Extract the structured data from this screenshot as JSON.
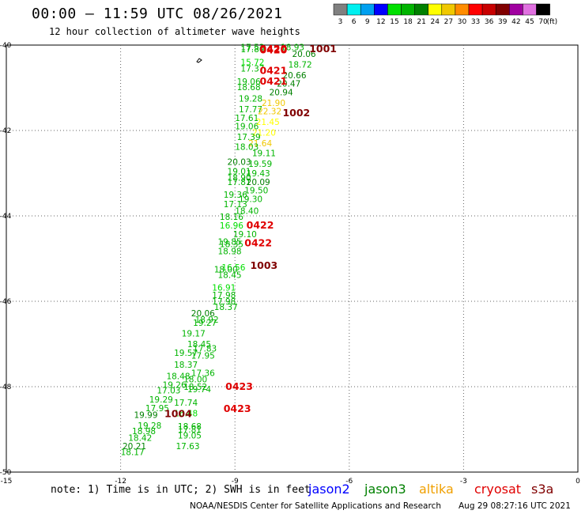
{
  "header": {
    "title": "00:00 — 11:59 UTC 08/26/2021",
    "subtitle": "12 hour collection of altimeter wave heights"
  },
  "legend": {
    "units": "(ft)",
    "bins": [
      {
        "label": "3",
        "color": "#808080"
      },
      {
        "label": "6",
        "color": "#00f0f0"
      },
      {
        "label": "9",
        "color": "#00a0f0"
      },
      {
        "label": "12",
        "color": "#0000ff"
      },
      {
        "label": "15",
        "color": "#00e000"
      },
      {
        "label": "18",
        "color": "#00b400"
      },
      {
        "label": "21",
        "color": "#008000"
      },
      {
        "label": "24",
        "color": "#ffff00"
      },
      {
        "label": "27",
        "color": "#f0c800"
      },
      {
        "label": "30",
        "color": "#ff8c00"
      },
      {
        "label": "33",
        "color": "#ff0000"
      },
      {
        "label": "36",
        "color": "#c80000"
      },
      {
        "label": "39",
        "color": "#800000"
      },
      {
        "label": "42",
        "color": "#a000a0"
      },
      {
        "label": "45",
        "color": "#e070e0"
      },
      {
        "label": "70",
        "color": "#000000"
      }
    ]
  },
  "map": {
    "lon_range": [
      -15,
      0
    ],
    "lat_range": [
      -50,
      -40
    ],
    "x_ticks": [
      "-15",
      "-12",
      "-9",
      "-6",
      "-3",
      "0"
    ],
    "y_ticks": [
      "-40",
      "-42",
      "-44",
      "-46",
      "-48",
      "-50"
    ],
    "grid": true
  },
  "chart_data": {
    "type": "scatter",
    "xlabel": "",
    "ylabel": "",
    "xlim": [
      -15,
      0
    ],
    "ylim": [
      -50,
      -40
    ],
    "points": [
      {
        "lon": -8.85,
        "lat": -40.05,
        "v": "17.53",
        "c": "#00b400"
      },
      {
        "lon": -8.85,
        "lat": -40.09,
        "v": "17.80",
        "c": "#00b400"
      },
      {
        "lon": -7.8,
        "lat": -40.05,
        "v": "18.93",
        "c": "#00b400"
      },
      {
        "lon": -7.5,
        "lat": -40.2,
        "v": "20.06",
        "c": "#008000"
      },
      {
        "lon": -8.85,
        "lat": -40.4,
        "v": "15.72",
        "c": "#00e000"
      },
      {
        "lon": -7.6,
        "lat": -40.45,
        "v": "18.72",
        "c": "#00b400"
      },
      {
        "lon": -8.85,
        "lat": -40.55,
        "v": "17.37",
        "c": "#00b400"
      },
      {
        "lon": -7.75,
        "lat": -40.7,
        "v": "20.66",
        "c": "#008000"
      },
      {
        "lon": -8.95,
        "lat": -40.85,
        "v": "19.06",
        "c": "#00b400"
      },
      {
        "lon": -7.9,
        "lat": -40.9,
        "v": "20.47",
        "c": "#008000"
      },
      {
        "lon": -8.95,
        "lat": -40.98,
        "v": "18.68",
        "c": "#00b400"
      },
      {
        "lon": -8.1,
        "lat": -41.1,
        "v": "20.94",
        "c": "#008000"
      },
      {
        "lon": -8.9,
        "lat": -41.25,
        "v": "19.28",
        "c": "#00b400"
      },
      {
        "lon": -8.3,
        "lat": -41.35,
        "v": "21.90",
        "c": "#f0c800"
      },
      {
        "lon": -8.9,
        "lat": -41.5,
        "v": "17.77",
        "c": "#00b400"
      },
      {
        "lon": -8.4,
        "lat": -41.55,
        "v": "22.32",
        "c": "#f0c800"
      },
      {
        "lon": -9.0,
        "lat": -41.7,
        "v": "17.61",
        "c": "#00b400"
      },
      {
        "lon": -8.45,
        "lat": -41.8,
        "v": "21.45",
        "c": "#ffff00"
      },
      {
        "lon": -9.0,
        "lat": -41.9,
        "v": "19.06",
        "c": "#00b400"
      },
      {
        "lon": -8.55,
        "lat": -42.05,
        "v": "21.20",
        "c": "#ffff00"
      },
      {
        "lon": -8.95,
        "lat": -42.15,
        "v": "17.39",
        "c": "#00b400"
      },
      {
        "lon": -8.65,
        "lat": -42.3,
        "v": "21.64",
        "c": "#f0c800"
      },
      {
        "lon": -9.0,
        "lat": -42.38,
        "v": "18.03",
        "c": "#00b400"
      },
      {
        "lon": -8.55,
        "lat": -42.53,
        "v": "19.11",
        "c": "#00b400"
      },
      {
        "lon": -9.2,
        "lat": -42.73,
        "v": "20.03",
        "c": "#008000"
      },
      {
        "lon": -8.65,
        "lat": -42.78,
        "v": "19.59",
        "c": "#00b400"
      },
      {
        "lon": -9.2,
        "lat": -42.95,
        "v": "19.01",
        "c": "#00b400"
      },
      {
        "lon": -8.7,
        "lat": -43.0,
        "v": "19.43",
        "c": "#00b400"
      },
      {
        "lon": -9.2,
        "lat": -43.1,
        "v": "18.90",
        "c": "#00b400"
      },
      {
        "lon": -9.2,
        "lat": -43.2,
        "v": "17.81",
        "c": "#00b400"
      },
      {
        "lon": -8.7,
        "lat": -43.2,
        "v": "20.09",
        "c": "#008000"
      },
      {
        "lon": -8.75,
        "lat": -43.4,
        "v": "19.50",
        "c": "#00b400"
      },
      {
        "lon": -9.3,
        "lat": -43.5,
        "v": "19.36",
        "c": "#00b400"
      },
      {
        "lon": -8.9,
        "lat": -43.6,
        "v": "19.30",
        "c": "#00b400"
      },
      {
        "lon": -9.3,
        "lat": -43.72,
        "v": "17.13",
        "c": "#00b400"
      },
      {
        "lon": -9.0,
        "lat": -43.88,
        "v": "18.40",
        "c": "#00b400"
      },
      {
        "lon": -9.4,
        "lat": -44.02,
        "v": "18.16",
        "c": "#00b400"
      },
      {
        "lon": -9.4,
        "lat": -44.22,
        "v": "16.96",
        "c": "#00e000"
      },
      {
        "lon": -9.05,
        "lat": -44.43,
        "v": "19.10",
        "c": "#00b400"
      },
      {
        "lon": -9.45,
        "lat": -44.6,
        "v": "19.85",
        "c": "#00b400"
      },
      {
        "lon": -9.4,
        "lat": -44.66,
        "v": "18.35",
        "c": "#00b400"
      },
      {
        "lon": -9.45,
        "lat": -44.82,
        "v": "18.98",
        "c": "#00b400"
      },
      {
        "lon": -9.35,
        "lat": -45.2,
        "v": "16.56",
        "c": "#00e000"
      },
      {
        "lon": -9.55,
        "lat": -45.25,
        "v": "18.00",
        "c": "#00b400"
      },
      {
        "lon": -9.45,
        "lat": -45.38,
        "v": "18.45",
        "c": "#00b400"
      },
      {
        "lon": -9.6,
        "lat": -45.68,
        "v": "16.91",
        "c": "#00e000"
      },
      {
        "lon": -9.6,
        "lat": -45.85,
        "v": "17.98",
        "c": "#00b400"
      },
      {
        "lon": -9.6,
        "lat": -46.0,
        "v": "17.98",
        "c": "#00b400"
      },
      {
        "lon": -9.55,
        "lat": -46.13,
        "v": "18.37",
        "c": "#00b400"
      },
      {
        "lon": -10.15,
        "lat": -46.28,
        "v": "20.06",
        "c": "#008000"
      },
      {
        "lon": -10.05,
        "lat": -46.43,
        "v": "18.92",
        "c": "#00b400"
      },
      {
        "lon": -10.1,
        "lat": -46.5,
        "v": "19.27",
        "c": "#00b400"
      },
      {
        "lon": -10.4,
        "lat": -46.75,
        "v": "19.17",
        "c": "#00b400"
      },
      {
        "lon": -10.25,
        "lat": -47.0,
        "v": "18.45",
        "c": "#00b400"
      },
      {
        "lon": -10.1,
        "lat": -47.1,
        "v": "17.83",
        "c": "#00b400"
      },
      {
        "lon": -10.6,
        "lat": -47.2,
        "v": "19.57",
        "c": "#00b400"
      },
      {
        "lon": -10.15,
        "lat": -47.27,
        "v": "17.95",
        "c": "#00b400"
      },
      {
        "lon": -10.6,
        "lat": -47.48,
        "v": "18.37",
        "c": "#00b400"
      },
      {
        "lon": -10.15,
        "lat": -47.68,
        "v": "17.36",
        "c": "#00b400"
      },
      {
        "lon": -10.8,
        "lat": -47.75,
        "v": "18.48",
        "c": "#00b400"
      },
      {
        "lon": -10.35,
        "lat": -47.82,
        "v": "18.00",
        "c": "#00b400"
      },
      {
        "lon": -10.9,
        "lat": -47.95,
        "v": "19.26",
        "c": "#00b400"
      },
      {
        "lon": -10.35,
        "lat": -48.0,
        "v": "18.52",
        "c": "#00b400"
      },
      {
        "lon": -11.05,
        "lat": -48.08,
        "v": "17.03",
        "c": "#00b400"
      },
      {
        "lon": -10.25,
        "lat": -48.06,
        "v": "19.74",
        "c": "#00b400"
      },
      {
        "lon": -11.25,
        "lat": -48.3,
        "v": "19.29",
        "c": "#00b400"
      },
      {
        "lon": -10.6,
        "lat": -48.37,
        "v": "17.74",
        "c": "#00b400"
      },
      {
        "lon": -11.35,
        "lat": -48.5,
        "v": "17.95",
        "c": "#00b400"
      },
      {
        "lon": -10.6,
        "lat": -48.62,
        "v": "16.48",
        "c": "#00e000"
      },
      {
        "lon": -11.65,
        "lat": -48.66,
        "v": "19.99",
        "c": "#008000"
      },
      {
        "lon": -11.55,
        "lat": -48.91,
        "v": "19.28",
        "c": "#00b400"
      },
      {
        "lon": -10.5,
        "lat": -48.93,
        "v": "18.68",
        "c": "#00b400"
      },
      {
        "lon": -11.7,
        "lat": -49.04,
        "v": "18.98",
        "c": "#00b400"
      },
      {
        "lon": -10.5,
        "lat": -49.0,
        "v": "17.81",
        "c": "#00b400"
      },
      {
        "lon": -11.8,
        "lat": -49.19,
        "v": "18.42",
        "c": "#00b400"
      },
      {
        "lon": -10.5,
        "lat": -49.14,
        "v": "19.05",
        "c": "#00b400"
      },
      {
        "lon": -11.95,
        "lat": -49.39,
        "v": "20.21",
        "c": "#008000"
      },
      {
        "lon": -10.55,
        "lat": -49.39,
        "v": "17.63",
        "c": "#00b400"
      },
      {
        "lon": -12.0,
        "lat": -49.53,
        "v": "18.17",
        "c": "#00b400"
      }
    ]
  },
  "pass_labels": [
    {
      "lon": -8.35,
      "lat": -40.07,
      "text": "0420",
      "c": "#e00000"
    },
    {
      "lon": -8.35,
      "lat": -40.1,
      "text": "0420",
      "c": "#e00000"
    },
    {
      "lon": -7.05,
      "lat": -40.07,
      "text": "1001",
      "c": "#800000"
    },
    {
      "lon": -8.35,
      "lat": -40.58,
      "text": "0421",
      "c": "#e00000"
    },
    {
      "lon": -8.35,
      "lat": -40.83,
      "text": "0421",
      "c": "#e00000"
    },
    {
      "lon": -7.75,
      "lat": -41.57,
      "text": "1002",
      "c": "#800000"
    },
    {
      "lon": -8.7,
      "lat": -44.2,
      "text": "0422",
      "c": "#e00000"
    },
    {
      "lon": -8.75,
      "lat": -44.62,
      "text": "0422",
      "c": "#e00000"
    },
    {
      "lon": -8.6,
      "lat": -45.15,
      "text": "1003",
      "c": "#800000"
    },
    {
      "lon": -9.25,
      "lat": -47.98,
      "text": "0423",
      "c": "#e00000"
    },
    {
      "lon": -9.3,
      "lat": -48.5,
      "text": "0423",
      "c": "#e00000"
    },
    {
      "lon": -10.85,
      "lat": -48.62,
      "text": "1004",
      "c": "#800000"
    }
  ],
  "footer": {
    "note": "note:  1) Time is in UTC;  2) SWH is in feet",
    "missions": [
      {
        "label": "jason2",
        "color": "#0000ff"
      },
      {
        "label": "jason3",
        "color": "#008000"
      },
      {
        "label": "altika",
        "color": "#f0a000"
      },
      {
        "label": "cryosat",
        "color": "#e00000"
      },
      {
        "label": "s3a",
        "color": "#800000"
      }
    ],
    "credit": "NOAA/NESDIS Center for Satellite Applications and Research",
    "timestamp": "Aug 29 08:27:16 UTC 2021"
  }
}
